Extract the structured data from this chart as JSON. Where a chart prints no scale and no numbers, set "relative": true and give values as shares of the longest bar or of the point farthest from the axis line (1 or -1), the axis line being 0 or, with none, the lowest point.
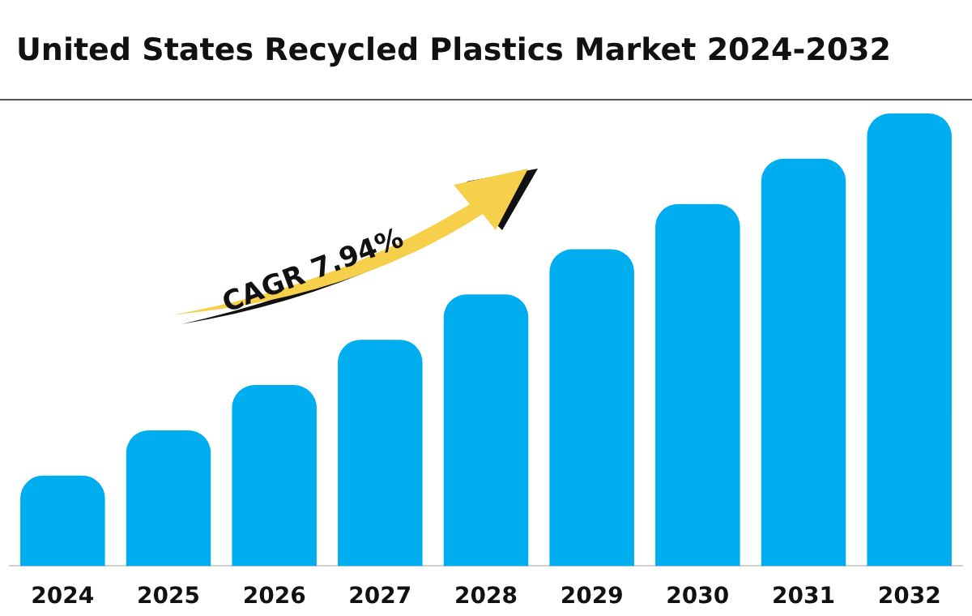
{
  "chart_data": {
    "type": "bar",
    "title": "United States Recycled Plastics Market 2024-2032",
    "categories": [
      "2024",
      "2025",
      "2026",
      "2027",
      "2028",
      "2029",
      "2030",
      "2031",
      "2032"
    ],
    "values": [
      0.2,
      0.3,
      0.4,
      0.5,
      0.6,
      0.7,
      0.8,
      0.9,
      1
    ],
    "color": "#00aeef",
    "relative": true,
    "annotations": [
      "CAGR 7.94%"
    ]
  }
}
